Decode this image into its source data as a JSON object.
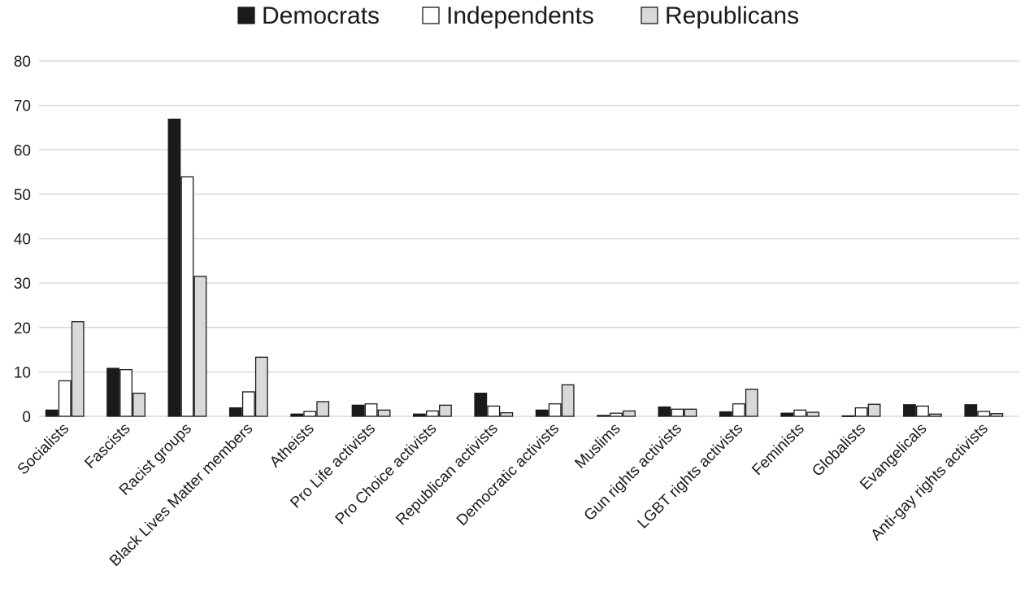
{
  "chart_data": {
    "type": "bar",
    "title": "",
    "xlabel": "",
    "ylabel": "",
    "ylim": [
      0,
      80
    ],
    "yticks": [
      0,
      10,
      20,
      30,
      40,
      50,
      60,
      70,
      80
    ],
    "grid": true,
    "legend_position": "top-center",
    "categories": [
      "Socialists",
      "Fascists",
      "Racist groups",
      "Black Lives Matter members",
      "Atheists",
      "Pro Life activists",
      "Pro Choice activists",
      "Republican activists",
      "Democratic activists",
      "Muslims",
      "Gun rights activists",
      "LGBT rights activists",
      "Feminists",
      "Globalists",
      "Evangelicals",
      "Anti-gay rights activists"
    ],
    "series": [
      {
        "name": "Democrats",
        "color": "#1a1a1a",
        "values": [
          1.4,
          10.8,
          66.9,
          1.9,
          0.5,
          2.5,
          0.5,
          5.2,
          1.4,
          0.2,
          2.1,
          1.0,
          0.7,
          0.1,
          2.6,
          2.6
        ]
      },
      {
        "name": "Independents",
        "color": "#ffffff",
        "values": [
          8.0,
          10.5,
          53.9,
          5.5,
          1.1,
          2.8,
          1.2,
          2.3,
          2.8,
          0.7,
          1.6,
          2.8,
          1.4,
          1.9,
          2.3,
          1.1
        ]
      },
      {
        "name": "Republicans",
        "color": "#d9d9d9",
        "values": [
          21.3,
          5.2,
          31.5,
          13.3,
          3.3,
          1.4,
          2.5,
          0.8,
          7.1,
          1.2,
          1.6,
          6.1,
          0.9,
          2.7,
          0.5,
          0.6
        ]
      }
    ]
  }
}
